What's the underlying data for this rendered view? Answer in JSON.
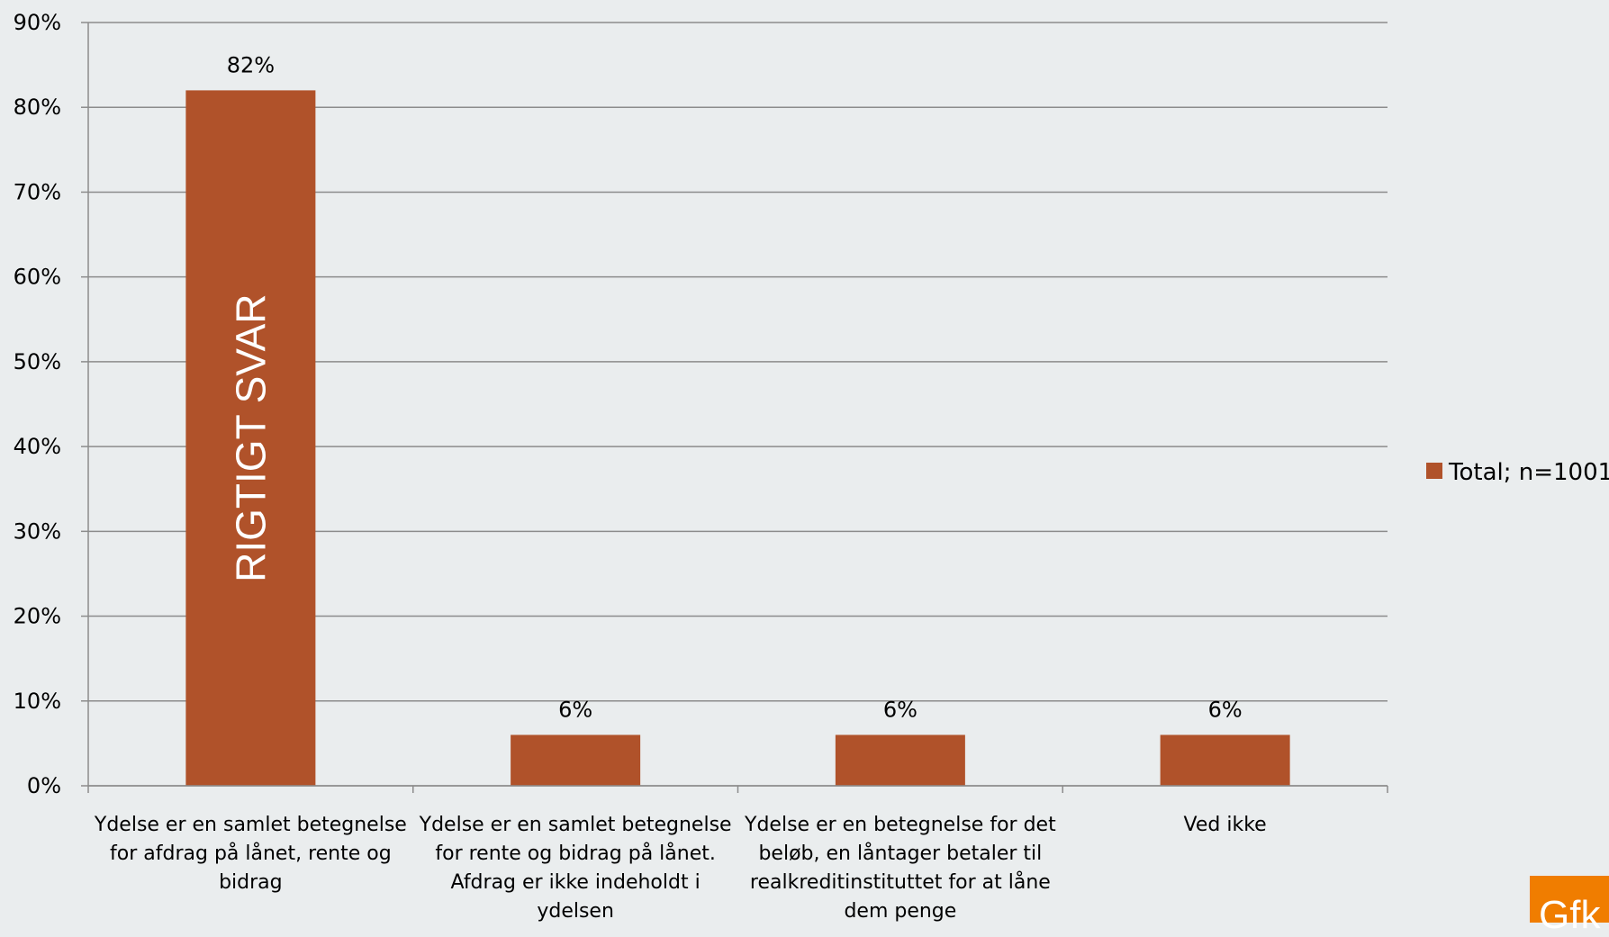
{
  "chart_data": {
    "type": "bar",
    "categories": [
      [
        "Ydelse er en samlet betegnelse",
        "for afdrag på lånet, rente og",
        "bidrag"
      ],
      [
        "Ydelse er en samlet betegnelse",
        "for rente og bidrag på lånet.",
        "Afdrag er ikke indeholdt i",
        "ydelsen"
      ],
      [
        "Ydelse er en betegnelse for det",
        "beløb, en låntager betaler til",
        "realkreditinstituttet for at låne",
        "dem penge"
      ],
      [
        "Ved ikke"
      ]
    ],
    "series": [
      {
        "name": "Total; n=1001",
        "values": [
          82,
          6,
          6,
          6
        ],
        "color": "#b0522a"
      }
    ],
    "data_labels": [
      "82%",
      "6%",
      "6%",
      "6%"
    ],
    "y_ticks": [
      "0%",
      "10%",
      "20%",
      "30%",
      "40%",
      "50%",
      "60%",
      "70%",
      "80%",
      "90%"
    ],
    "ylim": [
      0,
      90
    ],
    "annotation": {
      "text": "RIGTIGT SVAR",
      "category_index": 0
    },
    "grid": true,
    "legend_position": "right",
    "gridline_color": "#8c8c8c"
  },
  "logo": {
    "text": "Gfk",
    "color": "#f07d00"
  }
}
